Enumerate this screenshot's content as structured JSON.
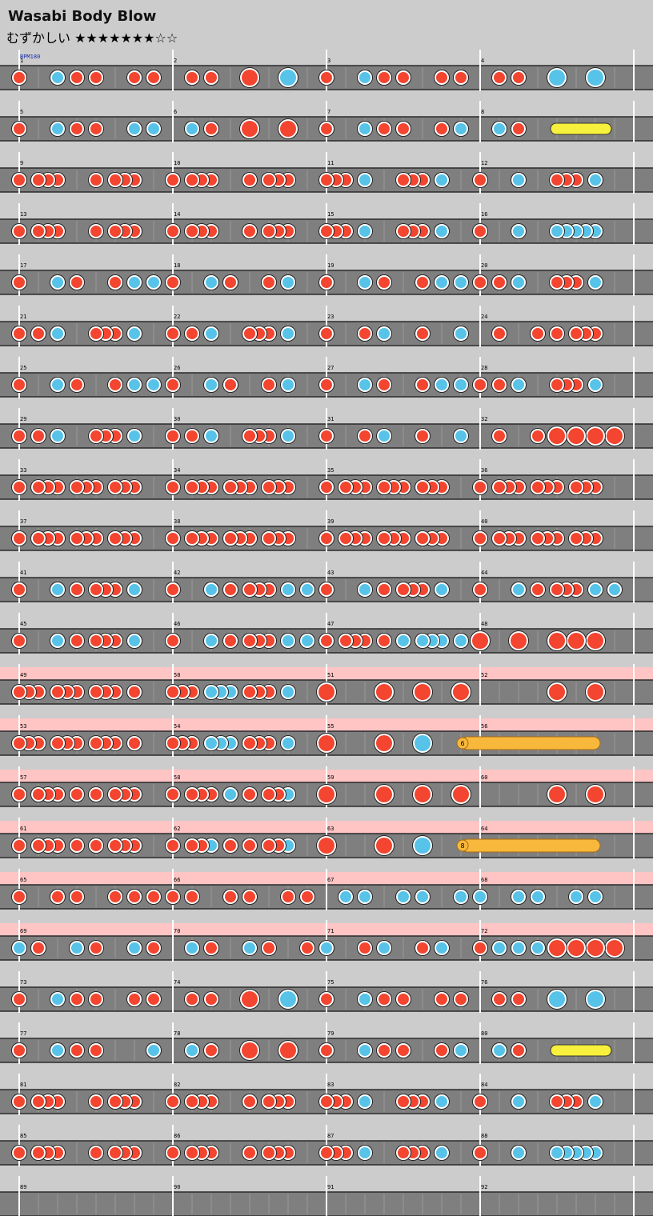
{
  "header": {
    "title": "Wasabi Body Blow",
    "difficulty": "むずかしい ★★★★★★★☆☆"
  },
  "bpm_label": "BPM180",
  "measures": [
    1,
    2,
    3,
    4,
    5,
    6,
    7,
    8,
    9,
    10,
    11,
    12,
    13,
    14,
    15,
    16,
    17,
    18,
    19,
    20,
    21,
    22,
    23,
    24,
    25,
    26,
    27,
    28,
    29,
    30,
    31,
    32,
    33,
    34,
    35,
    36,
    37,
    38,
    39,
    40,
    41,
    42,
    43,
    44,
    45,
    46,
    47,
    48,
    49,
    50,
    51,
    52,
    53,
    54,
    55,
    56,
    57,
    58,
    59,
    60,
    61,
    62,
    63,
    64,
    65,
    66,
    67,
    68,
    69,
    70,
    71,
    72,
    73,
    74,
    75,
    76,
    77,
    78,
    79,
    80,
    81,
    82,
    83,
    84,
    85,
    86,
    87,
    88,
    89,
    90,
    91,
    92
  ],
  "balloons": [
    6,
    8
  ]
}
